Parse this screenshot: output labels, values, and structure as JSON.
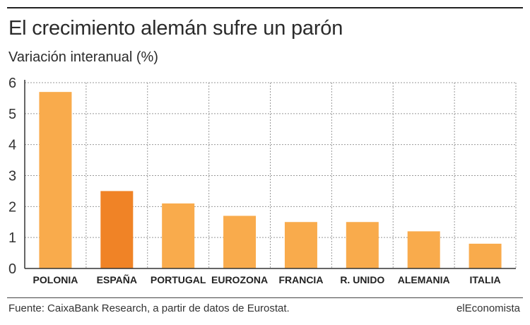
{
  "header": {
    "title": "El crecimiento alemán sufre un parón",
    "subtitle": "Variación interanual (%)"
  },
  "footer": {
    "source": "Fuente: CaixaBank Research, a partir de datos de Eurostat.",
    "brand": "elEconomista"
  },
  "colors": {
    "bar": "#f9ab4c",
    "highlight": "#f08326",
    "grid": "#999999",
    "axis": "#333333"
  },
  "chart_data": {
    "type": "bar",
    "categories": [
      "POLONIA",
      "ESPAÑA",
      "PORTUGAL",
      "EUROZONA",
      "FRANCIA",
      "R. UNIDO",
      "ALEMANIA",
      "ITALIA"
    ],
    "values": [
      5.7,
      2.5,
      2.1,
      1.7,
      1.5,
      1.5,
      1.2,
      0.8
    ],
    "highlight_category": "ESPAÑA",
    "title": "El crecimiento alemán sufre un parón",
    "ylabel": "Variación interanual (%)",
    "ylim": [
      0,
      6
    ],
    "yticks": [
      0,
      1,
      2,
      3,
      4,
      5,
      6
    ],
    "grid": true
  }
}
